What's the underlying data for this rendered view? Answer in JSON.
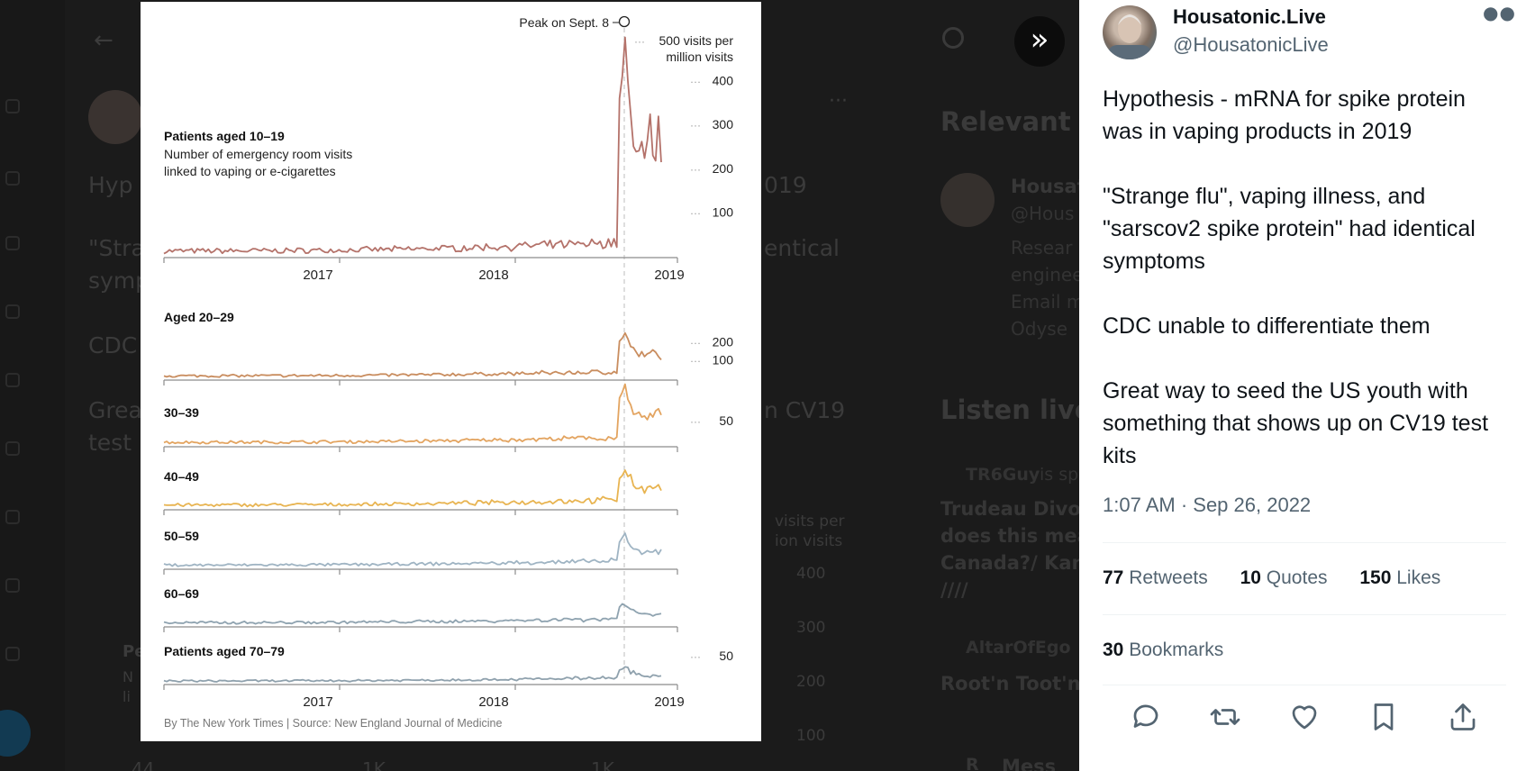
{
  "chart_data": {
    "type": "line",
    "x_ticks": [
      "2017",
      "2018",
      "2019"
    ],
    "annotation": "Peak on Sept. 8",
    "y_unit_label": [
      "500 visits per",
      "million visits"
    ],
    "source": "By The New York Times | Source: New England Journal of Medicine",
    "panels": [
      {
        "name": "Patients aged 10–19",
        "subtitle": [
          "Number of emergency room visits",
          "linked to vaping or e-cigarettes"
        ],
        "color": "#b4726a",
        "y_ticks": [
          400,
          300,
          200,
          100
        ],
        "base": 10,
        "peak": 500
      },
      {
        "name": "Aged 20–29",
        "color": "#c98d5f",
        "y_ticks": [
          200,
          100
        ],
        "base": 12,
        "peak": 240
      },
      {
        "name": "30–39",
        "color": "#e3a460",
        "y_ticks": [
          50
        ],
        "base": 5,
        "peak": 115
      },
      {
        "name": "40–49",
        "color": "#e8b451",
        "y_ticks": [],
        "base": 5,
        "peak": 65
      },
      {
        "name": "50–59",
        "color": "#9fb4c3",
        "y_ticks": [],
        "base": 4,
        "peak": 52
      },
      {
        "name": "60–69",
        "color": "#8fa3b0",
        "y_ticks": [],
        "base": 4,
        "peak": 32
      },
      {
        "name": "Patients aged 70–79",
        "color": "#8fa1ad",
        "y_ticks": [
          50
        ],
        "base": 3,
        "peak": 20
      }
    ]
  },
  "tweet": {
    "display_name": "Housatonic.Live",
    "handle": "@HousatonicLive",
    "text": [
      "Hypothesis - mRNA for spike protein was in vaping products in 2019",
      "\"Strange flu\", vaping illness, and \"sarscov2 spike protein\" had identical symptoms",
      "CDC unable to differentiate them",
      "Great way to seed the US youth with something that shows up on CV19 test kits"
    ],
    "timestamp": "1:07 AM · Sep 26, 2022",
    "stats": {
      "retweets": "77",
      "retweets_label": "Retweets",
      "quotes": "10",
      "quotes_label": "Quotes",
      "likes": "150",
      "likes_label": "Likes",
      "bookmarks": "30",
      "bookmarks_label": "Bookmarks"
    }
  },
  "background": {
    "text_lines": [
      "Hyp",
      "019",
      "\"Stra",
      "entical",
      "symp",
      "CDC",
      "Grea",
      "n CV19",
      "test",
      "Pe",
      "N",
      "li"
    ],
    "side_titles": [
      "Relevant p",
      "Listen live"
    ],
    "side_lines": [
      "Housat",
      "@Hous",
      "Resear",
      "enginee",
      "Email m",
      "Odyse"
    ],
    "space_host": "TR6Guy",
    "space_status": "is sp",
    "space_title_lines": [
      "Trudeau Divor",
      "does this mea",
      "Canada?/ Kan",
      "////"
    ],
    "space_host_2": "AltarOfEgo",
    "space_title_2": "Root'n Toot'n",
    "side_extra": "R",
    "side_extra_2": "Mess",
    "dim_ticks": [
      "400",
      "300",
      "200",
      "100"
    ],
    "dim_unit": [
      "visits per",
      "ion visits"
    ],
    "bar_counts": [
      "44",
      "1K",
      "1K"
    ]
  }
}
